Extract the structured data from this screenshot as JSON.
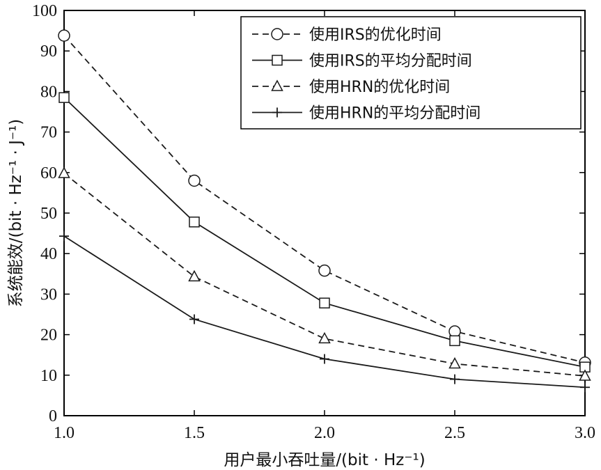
{
  "chart_data": {
    "type": "line",
    "xlabel": "用户最小吞吐量/(bit · Hz⁻¹)",
    "ylabel": "系统能效/(bit · Hz⁻¹ · J⁻¹)",
    "x": [
      1.0,
      1.5,
      2.0,
      2.5,
      3.0
    ],
    "x_tick_labels": [
      "1.0",
      "1.5",
      "2.0",
      "2.5",
      "3.0"
    ],
    "y_tick_labels": [
      "0",
      "10",
      "20",
      "30",
      "40",
      "50",
      "60",
      "70",
      "80",
      "90",
      "100"
    ],
    "xlim": [
      1.0,
      3.0
    ],
    "ylim": [
      0,
      100
    ],
    "grid": false,
    "legend_position": "top-right",
    "series": [
      {
        "name": "使用IRS的优化时间",
        "values": [
          93.8,
          58.0,
          35.8,
          20.8,
          13.1
        ],
        "line_style": "dashed",
        "marker": "circle"
      },
      {
        "name": "使用IRS的平均分配时间",
        "values": [
          78.5,
          47.8,
          27.8,
          18.5,
          12.0
        ],
        "line_style": "solid",
        "marker": "square"
      },
      {
        "name": "使用HRN的优化时间",
        "values": [
          59.8,
          34.3,
          19.0,
          12.8,
          9.8
        ],
        "line_style": "dashed",
        "marker": "triangle"
      },
      {
        "name": "使用HRN的平均分配时间",
        "values": [
          44.3,
          23.8,
          14.0,
          9.0,
          7.0
        ],
        "line_style": "solid",
        "marker": "plus"
      }
    ],
    "colors": {
      "line": "#1a1a1a",
      "marker_fill": "#ffffff",
      "axis": "#000000"
    }
  }
}
